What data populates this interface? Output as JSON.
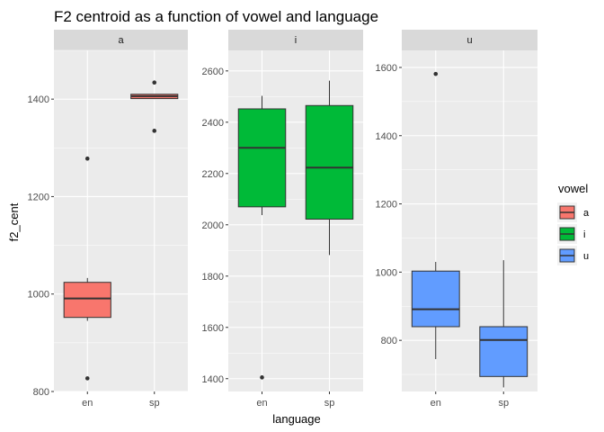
{
  "chart_data": {
    "type": "boxplot",
    "title": "F2 centroid as a function of vowel and language",
    "xlabel": "language",
    "ylabel": "f2_cent",
    "categories": [
      "en",
      "sp"
    ],
    "legend": {
      "title": "vowel",
      "placement": "right",
      "entries": [
        {
          "label": "a",
          "color": "#F8766D"
        },
        {
          "label": "i",
          "color": "#00BA38"
        },
        {
          "label": "u",
          "color": "#619CFF"
        }
      ]
    },
    "facets": [
      {
        "label": "a",
        "color": "#F8766D",
        "ylim": [
          800,
          1500
        ],
        "yticks": [
          800,
          1000,
          1200,
          1400
        ],
        "boxes": [
          {
            "x": "en",
            "q1": 952,
            "median": 991,
            "q3": 1024,
            "whisker_low": 945,
            "whisker_high": 1033,
            "outliers": [
              1278,
              827
            ]
          },
          {
            "x": "sp",
            "q1": 1401,
            "median": 1406,
            "q3": 1410,
            "whisker_low": 1401,
            "whisker_high": 1410,
            "outliers": [
              1434,
              1335
            ]
          }
        ]
      },
      {
        "label": "i",
        "color": "#00BA38",
        "ylim": [
          1350,
          2680
        ],
        "yticks": [
          1400,
          1600,
          1800,
          2000,
          2200,
          2400,
          2600
        ],
        "boxes": [
          {
            "x": "en",
            "q1": 2070,
            "median": 2300,
            "q3": 2452,
            "whisker_low": 2038,
            "whisker_high": 2503,
            "outliers": [
              1405
            ]
          },
          {
            "x": "sp",
            "q1": 2022,
            "median": 2223,
            "q3": 2465,
            "whisker_low": 1882,
            "whisker_high": 2562,
            "outliers": []
          }
        ]
      },
      {
        "label": "u",
        "color": "#619CFF",
        "ylim": [
          650,
          1650
        ],
        "yticks": [
          800,
          1000,
          1200,
          1400,
          1600
        ],
        "boxes": [
          {
            "x": "en",
            "q1": 840,
            "median": 891,
            "q3": 1003,
            "whisker_low": 745,
            "whisker_high": 1030,
            "outliers": [
              1581
            ]
          },
          {
            "x": "sp",
            "q1": 694,
            "median": 801,
            "q3": 840,
            "whisker_low": 662,
            "whisker_high": 1035,
            "outliers": []
          }
        ]
      }
    ]
  }
}
